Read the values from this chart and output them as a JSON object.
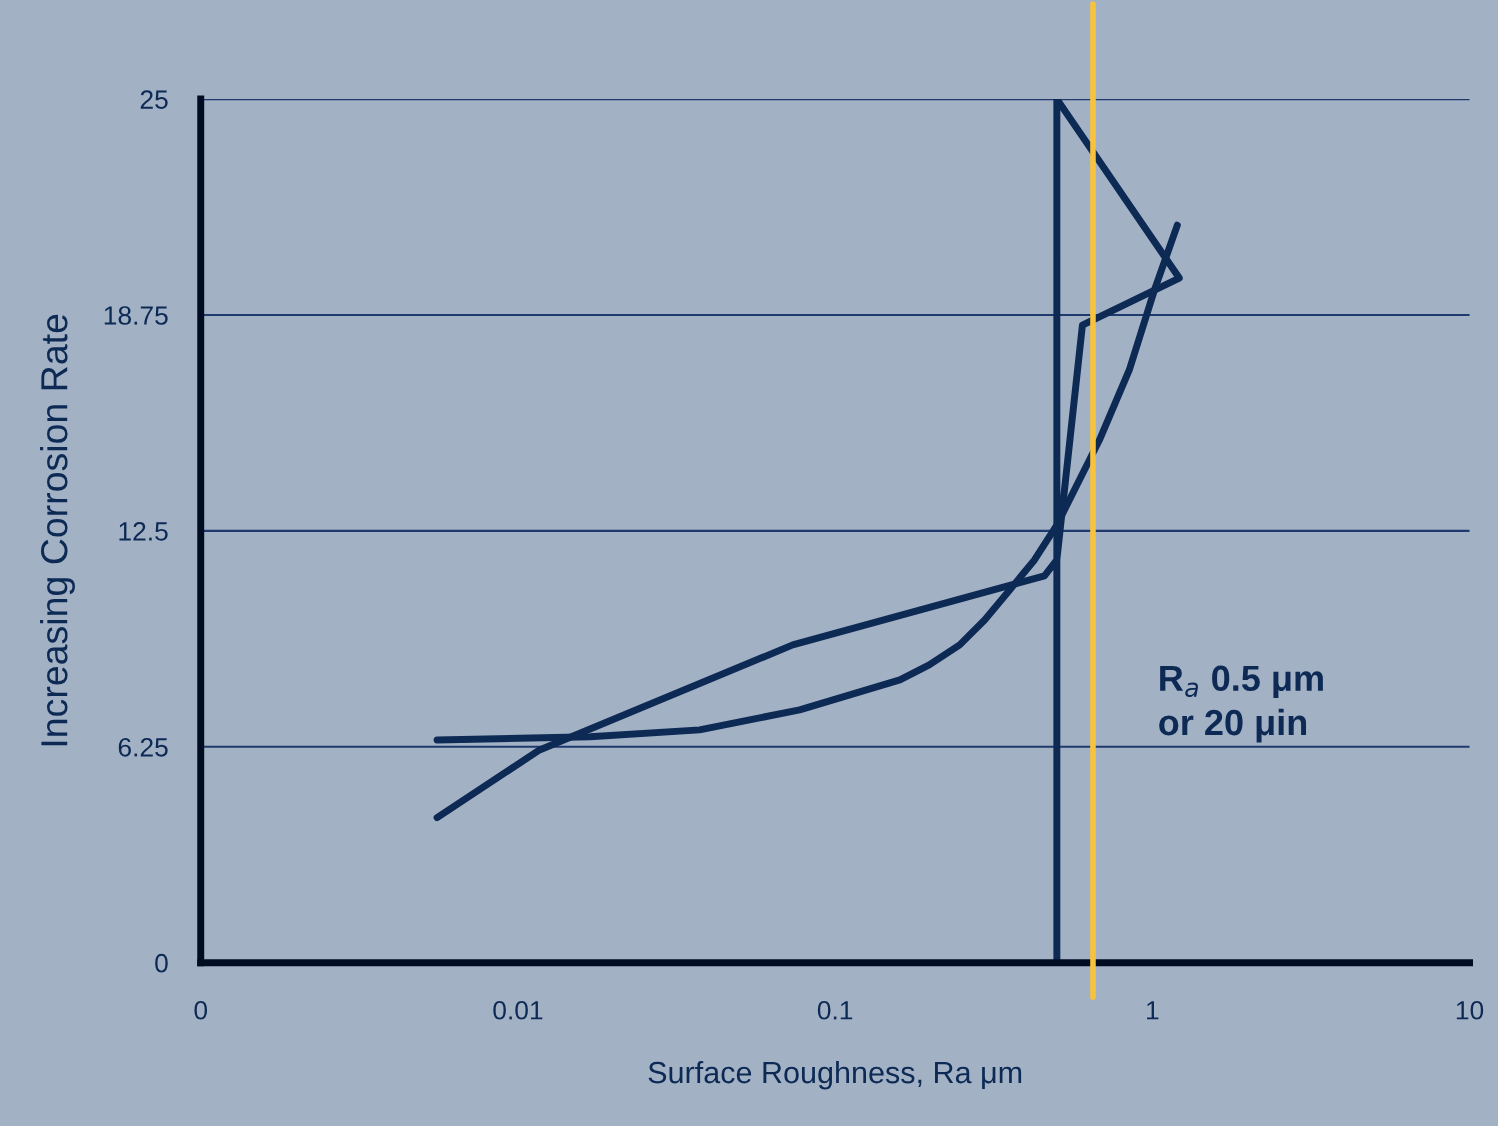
{
  "chart_data": {
    "type": "line",
    "xlabel": "Surface Roughness, Ra μm",
    "ylabel": "Increasing Corrosion Rate",
    "log": "x",
    "xlim": [
      0.001,
      10
    ],
    "xticks": [
      {
        "value": 0.001,
        "label": "0"
      },
      0.01,
      0.1,
      1,
      10
    ],
    "ylim": [
      0,
      25
    ],
    "yticks": [
      0,
      6.25,
      12.5,
      18.75,
      25
    ],
    "grid": "y",
    "marker": "none",
    "line_style": "solid",
    "series": [
      {
        "color": "#0d2a55",
        "x": [
          0.00556,
          0.0117,
          0.0735,
          0.457,
          0.5,
          0.602,
          1.216,
          0.5,
          0.5
        ],
        "values": [
          4.2,
          6.16,
          9.2,
          11.2,
          11.66,
          18.46,
          19.82,
          25,
          0
        ]
      },
      {
        "color": "#0d2a55",
        "x": [
          0.00556,
          0.0169,
          0.0374,
          0.0773,
          0.16,
          0.198,
          0.247,
          0.296,
          0.355,
          0.425,
          0.5,
          0.681,
          0.846,
          1.015,
          1.199
        ],
        "values": [
          6.45,
          6.54,
          6.74,
          7.32,
          8.19,
          8.62,
          9.2,
          9.92,
          10.79,
          11.66,
          12.67,
          15.13,
          17.16,
          19.47,
          21.35
        ]
      }
    ],
    "ref_lines": [
      {
        "axis": "x",
        "value": 0.65,
        "label": "R$_{a}$ 0.5 μm\nor 20 μin",
        "color": "#f9c23c"
      }
    ]
  }
}
